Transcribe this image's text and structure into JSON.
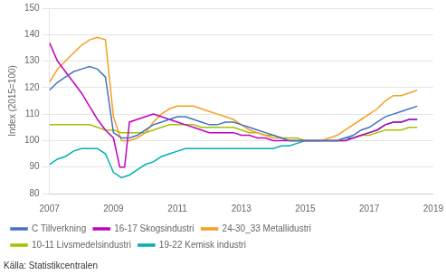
{
  "chart_data": {
    "type": "line",
    "ylabel": "Index (2015=100)",
    "source": "Källa: Statistikcentralen",
    "xlim": [
      2007.0,
      2019.0
    ],
    "xticks": [
      2007,
      2009,
      2011,
      2013,
      2015,
      2017,
      2019
    ],
    "ylim": [
      80,
      150
    ],
    "yticks": [
      80,
      90,
      100,
      110,
      120,
      130,
      140,
      150
    ],
    "grid": "y",
    "legend": "bottom",
    "series": [
      {
        "name": "C Tillverkning",
        "color": "#4472C4",
        "x": [
          2007.0,
          2007.25,
          2007.5,
          2007.75,
          2008.0,
          2008.25,
          2008.5,
          2008.75,
          2009.0,
          2009.25,
          2009.5,
          2009.75,
          2010.0,
          2010.25,
          2010.5,
          2010.75,
          2011.0,
          2011.25,
          2011.5,
          2011.75,
          2012.0,
          2012.25,
          2012.5,
          2012.75,
          2013.0,
          2013.25,
          2013.5,
          2013.75,
          2014.0,
          2014.25,
          2014.5,
          2014.75,
          2015.0,
          2015.25,
          2015.5,
          2015.75,
          2016.0,
          2016.25,
          2016.5,
          2016.75,
          2017.0,
          2017.25,
          2017.5,
          2017.75,
          2018.0,
          2018.25,
          2018.5
        ],
        "values": [
          119,
          122,
          124,
          126,
          127,
          128,
          127,
          124,
          103,
          101,
          101,
          102,
          104,
          106,
          107,
          108,
          109,
          109,
          108,
          107,
          106,
          106,
          107,
          107,
          106,
          105,
          104,
          103,
          102,
          101,
          100,
          100,
          100,
          100,
          100,
          100,
          100,
          101,
          102,
          104,
          105,
          107,
          109,
          110,
          111,
          112,
          113
        ]
      },
      {
        "name": "16-17 Skogsindustri",
        "color": "#C000C0",
        "x": [
          2007.0,
          2007.25,
          2007.5,
          2007.75,
          2008.0,
          2008.25,
          2008.5,
          2008.75,
          2009.0,
          2009.2,
          2009.35,
          2009.5,
          2009.75,
          2010.0,
          2010.25,
          2010.5,
          2010.75,
          2011.0,
          2011.25,
          2011.5,
          2011.75,
          2012.0,
          2012.25,
          2012.5,
          2012.75,
          2013.0,
          2013.25,
          2013.5,
          2013.75,
          2014.0,
          2014.25,
          2014.5,
          2014.75,
          2015.0,
          2015.25,
          2015.5,
          2015.75,
          2016.0,
          2016.25,
          2016.5,
          2016.75,
          2017.0,
          2017.25,
          2017.5,
          2017.75,
          2018.0,
          2018.25,
          2018.5
        ],
        "values": [
          137,
          130,
          126,
          122,
          118,
          113,
          108,
          104,
          101,
          90,
          90,
          107,
          108,
          109,
          110,
          109,
          108,
          107,
          106,
          105,
          104,
          103,
          103,
          103,
          103,
          102,
          102,
          101,
          101,
          100,
          100,
          100,
          100,
          100,
          100,
          100,
          100,
          100,
          100,
          101,
          102,
          103,
          104,
          106,
          107,
          107,
          108,
          108
        ]
      },
      {
        "name": "24-30_33 Metallidustri",
        "color": "#F4A020",
        "x": [
          2007.0,
          2007.25,
          2007.5,
          2007.75,
          2008.0,
          2008.25,
          2008.5,
          2008.75,
          2009.0,
          2009.25,
          2009.5,
          2009.75,
          2010.0,
          2010.25,
          2010.5,
          2010.75,
          2011.0,
          2011.25,
          2011.5,
          2011.75,
          2012.0,
          2012.25,
          2012.5,
          2012.75,
          2013.0,
          2013.25,
          2013.5,
          2013.75,
          2014.0,
          2014.25,
          2014.5,
          2014.75,
          2015.0,
          2015.25,
          2015.5,
          2015.75,
          2016.0,
          2016.25,
          2016.5,
          2016.75,
          2017.0,
          2017.25,
          2017.5,
          2017.75,
          2018.0,
          2018.25,
          2018.5
        ],
        "values": [
          122,
          127,
          130,
          133,
          136,
          138,
          139,
          138,
          109,
          100,
          100,
          101,
          103,
          107,
          110,
          112,
          113,
          113,
          113,
          112,
          111,
          110,
          109,
          108,
          106,
          104,
          103,
          102,
          101,
          101,
          100,
          100,
          100,
          100,
          100,
          101,
          102,
          104,
          106,
          108,
          110,
          112,
          115,
          117,
          117,
          118,
          119
        ]
      },
      {
        "name": "10-11 Livsmedelsindustri",
        "color": "#A8C000",
        "x": [
          2007.0,
          2007.25,
          2007.5,
          2007.75,
          2008.0,
          2008.25,
          2008.5,
          2008.75,
          2009.0,
          2009.25,
          2009.5,
          2009.75,
          2010.0,
          2010.25,
          2010.5,
          2010.75,
          2011.0,
          2011.25,
          2011.5,
          2011.75,
          2012.0,
          2012.25,
          2012.5,
          2012.75,
          2013.0,
          2013.25,
          2013.5,
          2013.75,
          2014.0,
          2014.25,
          2014.5,
          2014.75,
          2015.0,
          2015.25,
          2015.5,
          2015.75,
          2016.0,
          2016.25,
          2016.5,
          2016.75,
          2017.0,
          2017.25,
          2017.5,
          2017.75,
          2018.0,
          2018.25,
          2018.5
        ],
        "values": [
          106,
          106,
          106,
          106,
          106,
          106,
          105,
          104,
          104,
          103,
          103,
          103,
          103,
          104,
          105,
          106,
          106,
          106,
          106,
          105,
          105,
          105,
          105,
          105,
          104,
          103,
          103,
          102,
          102,
          101,
          101,
          101,
          100,
          100,
          100,
          100,
          100,
          100,
          101,
          102,
          102,
          103,
          104,
          104,
          104,
          105,
          105
        ]
      },
      {
        "name": "19-22 Kemisk industri",
        "color": "#00B0B0",
        "x": [
          2007.0,
          2007.25,
          2007.5,
          2007.75,
          2008.0,
          2008.25,
          2008.5,
          2008.75,
          2009.0,
          2009.25,
          2009.5,
          2009.75,
          2010.0,
          2010.25,
          2010.5,
          2010.75,
          2011.0,
          2011.25,
          2011.5,
          2011.75,
          2012.0,
          2012.25,
          2012.5,
          2012.75,
          2013.0,
          2013.25,
          2013.5,
          2013.75,
          2014.0,
          2014.25,
          2014.5,
          2014.75,
          2015.0,
          2015.25,
          2015.5,
          2015.75,
          2016.0,
          2016.25,
          2016.5,
          2016.75,
          2017.0,
          2017.25,
          2017.5,
          2017.75,
          2018.0,
          2018.25,
          2018.5
        ],
        "values": [
          91,
          93,
          94,
          96,
          97,
          97,
          97,
          95,
          88,
          86,
          87,
          89,
          91,
          92,
          94,
          95,
          96,
          97,
          97,
          97,
          97,
          97,
          97,
          97,
          97,
          97,
          97,
          97,
          97,
          98,
          98,
          99,
          100,
          100,
          100,
          100,
          100,
          101,
          101,
          102,
          103,
          104,
          106,
          107,
          107,
          108,
          108
        ]
      }
    ]
  }
}
